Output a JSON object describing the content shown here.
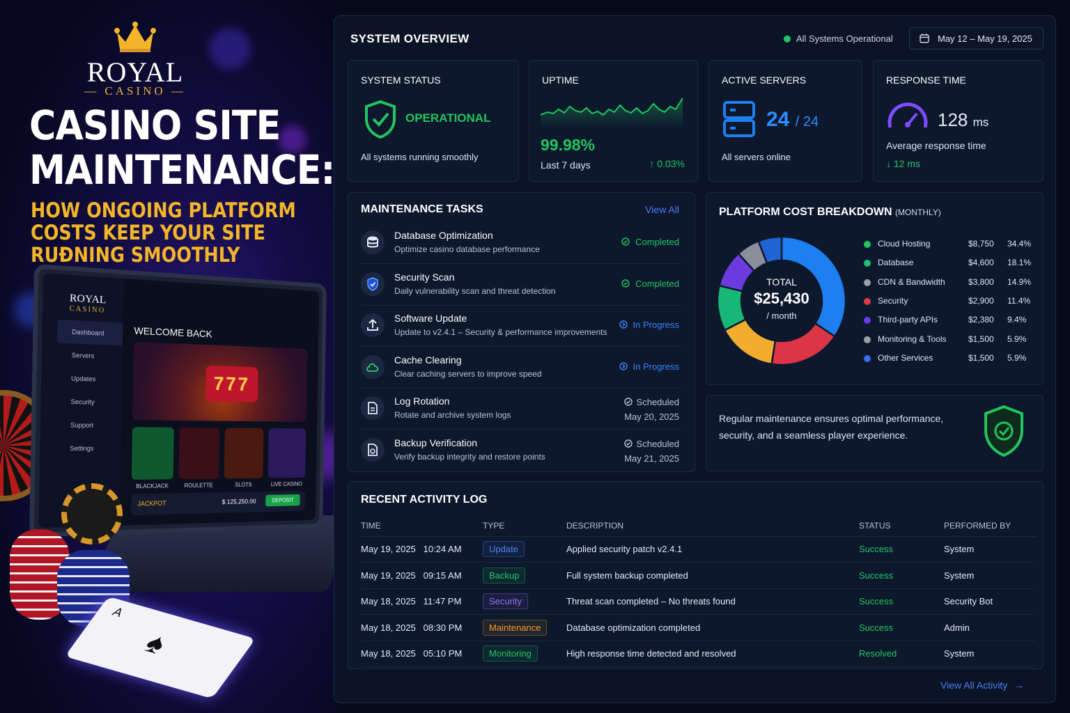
{
  "promo": {
    "brand_name": "ROYAL",
    "brand_sub": "CASINO",
    "headline_1": "CASINO SITE",
    "headline_2": "MAINTENANCE:",
    "sub_1": "HOW ONGOING PLATFORM",
    "sub_2": "COSTS KEEP YOUR SITE",
    "sub_3": "RUƉNING SMOOTHLY",
    "laptop": {
      "brand": "ROYAL",
      "brand_sub": "CASINO",
      "nav": [
        "Dashboard",
        "Servers",
        "Updates",
        "Security",
        "Support",
        "Settings"
      ],
      "welcome": "WELCOME BACK",
      "slot_number": "777",
      "games": [
        "BLACKJACK",
        "ROULETTE",
        "SLOTS",
        "LIVE CASINO"
      ],
      "jackpot_label": "JACKPOT",
      "jackpot_amount": "$ 125,250.00",
      "deposit_label": "DEPOSIT"
    }
  },
  "header": {
    "title": "SYSTEM OVERVIEW",
    "status": "All Systems Operational",
    "date_range": "May 12 – May 19, 2025"
  },
  "kpis": {
    "system_status": {
      "label": "SYSTEM STATUS",
      "value": "OPERATIONAL",
      "note": "All systems running smoothly"
    },
    "uptime": {
      "label": "UPTIME",
      "value": "99.98%",
      "period": "Last 7 days",
      "delta": "↑ 0.03%"
    },
    "active_servers": {
      "label": "ACTIVE SERVERS",
      "value": "24",
      "total": "/ 24",
      "note": "All servers online"
    },
    "response_time": {
      "label": "RESPONSE TIME",
      "value": "128",
      "unit": "ms",
      "note": "Average response time",
      "delta": "↓ 12 ms"
    }
  },
  "tasks": {
    "title": "MAINTENANCE TASKS",
    "view_all": "View All",
    "items": [
      {
        "name": "Database Optimization",
        "desc": "Optimize casino database performance",
        "status": "Completed",
        "icon": "database-icon"
      },
      {
        "name": "Security Scan",
        "desc": "Daily vulnerability scan and threat detection",
        "status": "Completed",
        "icon": "shield-icon"
      },
      {
        "name": "Software Update",
        "desc": "Update to v2.4.1 – Security & performance improvements",
        "status": "In Progress",
        "icon": "upload-icon"
      },
      {
        "name": "Cache Clearing",
        "desc": "Clear caching servers to improve speed",
        "status": "In Progress",
        "icon": "cloud-icon"
      },
      {
        "name": "Log Rotation",
        "desc": "Rotate and archive system logs",
        "status": "Scheduled",
        "date": "May 20, 2025",
        "icon": "document-icon"
      },
      {
        "name": "Backup Verification",
        "desc": "Verify backup integrity and restore points",
        "status": "Scheduled",
        "date": "May 21, 2025",
        "icon": "backup-file-icon"
      }
    ]
  },
  "costs": {
    "title": "PLATFORM COST BREAKDOWN",
    "title_suffix": "(MONTHLY)",
    "total_label": "TOTAL",
    "total_value": "$25,430",
    "total_unit": "/ month",
    "items": [
      {
        "name": "Cloud Hosting",
        "amount": "$8,750",
        "pct": "34.4%",
        "color": "#1d7ff0"
      },
      {
        "name": "Database",
        "amount": "$4,600",
        "pct": "18.1%",
        "color": "#dc3545"
      },
      {
        "name": "CDN & Bandwidth",
        "amount": "$3,800",
        "pct": "14.9%",
        "color": "#f2ad2f"
      },
      {
        "name": "Security",
        "amount": "$2,900",
        "pct": "11.4%",
        "color": "#17b877"
      },
      {
        "name": "Third-party APIs",
        "amount": "$2,380",
        "pct": "9.4%",
        "color": "#6c3be0"
      },
      {
        "name": "Monitoring & Tools",
        "amount": "$1,500",
        "pct": "5.9%",
        "color": "#8a8f9c"
      },
      {
        "name": "Other Services",
        "amount": "$1,500",
        "pct": "5.9%",
        "color": "#1f64d6"
      }
    ],
    "legend_colors": [
      "#22c55e",
      "#1fbf7a",
      "#9aa0ab",
      "#e03a4a",
      "#6a3be4",
      "#9aa0ab",
      "#3b6ee8"
    ]
  },
  "note": {
    "line1": "Regular maintenance ensures optimal performance,",
    "line2": "security, and a seamless player experience."
  },
  "activity": {
    "title": "RECENT ACTIVITY LOG",
    "columns": [
      "TIME",
      "TYPE",
      "DESCRIPTION",
      "STATUS",
      "PERFORMED BY"
    ],
    "rows": [
      {
        "time": "May 19, 2025   10:24 AM",
        "type": "Update",
        "type_color": "#4f83f8",
        "desc": "Applied security patch v2.4.1",
        "status": "Success",
        "by": "System"
      },
      {
        "time": "May 19, 2025   09:15 AM",
        "type": "Backup",
        "type_color": "#22c55e",
        "desc": "Full system backup completed",
        "status": "Success",
        "by": "System"
      },
      {
        "time": "May 18, 2025   11:47 PM",
        "type": "Security",
        "type_color": "#9b6cf5",
        "desc": "Threat scan completed – No threats found",
        "status": "Success",
        "by": "Security Bot"
      },
      {
        "time": "May 18, 2025   08:30 PM",
        "type": "Maintenance",
        "type_color": "#f59e2a",
        "desc": "Database optimization completed",
        "status": "Success",
        "by": "Admin"
      },
      {
        "time": "May 18, 2025   05:10 PM",
        "type": "Monitoring",
        "type_color": "#22c55e",
        "desc": "High response time detected and resolved",
        "status": "Resolved",
        "by": "System"
      }
    ],
    "view_all": "View All Activity"
  },
  "colors": {
    "success": "#22c55e",
    "progress": "#3b82f6",
    "accent": "#4f7df8",
    "gold": "#f3b52a"
  }
}
